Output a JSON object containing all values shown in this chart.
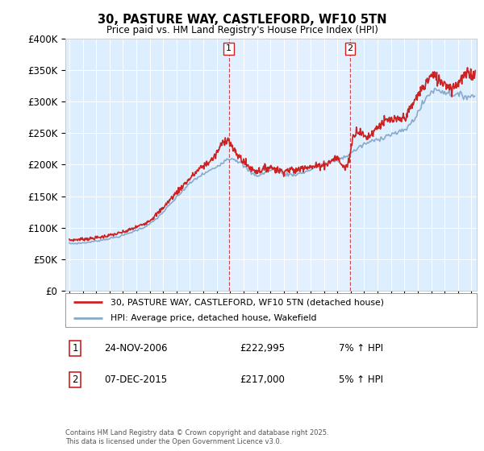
{
  "title1": "30, PASTURE WAY, CASTLEFORD, WF10 5TN",
  "title2": "Price paid vs. HM Land Registry's House Price Index (HPI)",
  "legend_label1": "30, PASTURE WAY, CASTLEFORD, WF10 5TN (detached house)",
  "legend_label2": "HPI: Average price, detached house, Wakefield",
  "copyright": "Contains HM Land Registry data © Crown copyright and database right 2025.\nThis data is licensed under the Open Government Licence v3.0.",
  "event1_label": "1",
  "event1_date": "24-NOV-2006",
  "event1_price": "£222,995",
  "event1_hpi": "7% ↑ HPI",
  "event1_x": 2006.9,
  "event2_label": "2",
  "event2_date": "07-DEC-2015",
  "event2_price": "£217,000",
  "event2_hpi": "5% ↑ HPI",
  "event2_x": 2015.95,
  "red_color": "#cc2222",
  "blue_color": "#88aacc",
  "bg_color": "#ddeeff",
  "highlight_bg": "#cce0f5",
  "ylim": [
    0,
    400000
  ],
  "xlim_start": 1994.7,
  "xlim_end": 2025.4,
  "figwidth": 6.0,
  "figheight": 5.6,
  "dpi": 100
}
